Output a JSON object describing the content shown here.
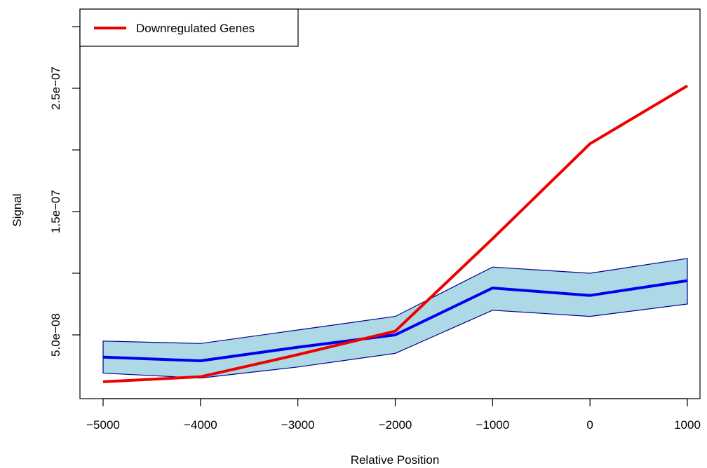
{
  "chart_data": {
    "type": "line",
    "title": "",
    "xlabel": "Relative Position",
    "ylabel": "Signal",
    "x": [
      -5000,
      -4000,
      -3000,
      -2000,
      -1000,
      0,
      1000
    ],
    "xlim": [
      -5000,
      1000
    ],
    "ylim": [
      0.0,
      3e-07
    ],
    "x_ticks": [
      -5000,
      -4000,
      -3000,
      -2000,
      -1000,
      0,
      1000
    ],
    "x_tick_labels": [
      "−5000",
      "−4000",
      "−3000",
      "−2000",
      "−1000",
      "0",
      "1000"
    ],
    "y_ticks": [
      5e-08,
      1e-07,
      1.5e-07,
      2e-07,
      2.5e-07,
      3e-07
    ],
    "y_tick_labels": [
      "5.0e−08",
      "",
      "1.5e−07",
      "",
      "2.5e−07",
      ""
    ],
    "grid": false,
    "legend_position": "top-left",
    "series": [
      {
        "name": "Downregulated Genes",
        "color": "#ee0000",
        "values": [
          1.2e-08,
          1.6e-08,
          3.4e-08,
          5.3e-08,
          1.28e-07,
          2.05e-07,
          2.52e-07
        ]
      },
      {
        "name": "",
        "color": "#0000ee",
        "values": [
          3.2e-08,
          2.9e-08,
          4e-08,
          5e-08,
          8.8e-08,
          8.2e-08,
          9.4e-08
        ]
      }
    ],
    "band": {
      "fill": "#add8e6",
      "stroke": "#00008b",
      "upper": [
        4.5e-08,
        4.3e-08,
        5.4e-08,
        6.5e-08,
        1.05e-07,
        1e-07,
        1.12e-07
      ],
      "lower": [
        1.9e-08,
        1.5e-08,
        2.4e-08,
        3.5e-08,
        7e-08,
        6.5e-08,
        7.5e-08
      ]
    }
  }
}
